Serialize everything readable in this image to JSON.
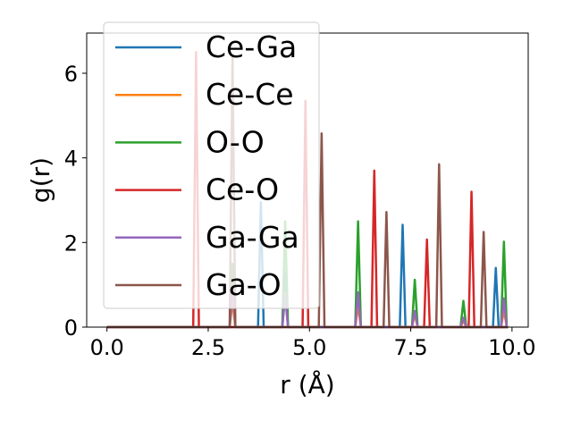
{
  "chart_data": {
    "type": "line",
    "title": "",
    "xlabel": "r (Å)",
    "ylabel": "g(r)",
    "xlim": [
      -0.5,
      10.4
    ],
    "ylim": [
      0,
      6.95
    ],
    "xticks": [
      0.0,
      2.5,
      5.0,
      7.5,
      10.0
    ],
    "xtick_labels": [
      "0.0",
      "2.5",
      "5.0",
      "7.5",
      "10.0"
    ],
    "yticks": [
      0,
      2,
      4,
      6
    ],
    "ytick_labels": [
      "0",
      "2",
      "4",
      "6"
    ],
    "grid": false,
    "legend_position": "top-left",
    "peak_halfwidth": 0.07,
    "series": [
      {
        "name": "Ce-Ga",
        "color": "#1f77b4",
        "peaks": [
          [
            3.8,
            2.95
          ],
          [
            4.4,
            1.3
          ],
          [
            7.3,
            2.42
          ],
          [
            9.6,
            1.4
          ]
        ]
      },
      {
        "name": "Ce-Ce",
        "color": "#ff7f0e",
        "peaks": [
          [
            3.1,
            0.6
          ],
          [
            4.4,
            0.8
          ],
          [
            6.2,
            0.5
          ],
          [
            7.6,
            0.3
          ],
          [
            8.8,
            0.15
          ],
          [
            9.8,
            0.4
          ]
        ]
      },
      {
        "name": "O-O",
        "color": "#2ca02c",
        "peaks": [
          [
            3.1,
            1.5
          ],
          [
            4.4,
            2.5
          ],
          [
            6.2,
            2.5
          ],
          [
            7.6,
            1.12
          ],
          [
            8.8,
            0.62
          ],
          [
            9.8,
            2.02
          ]
        ]
      },
      {
        "name": "Ce-O",
        "color": "#d62728",
        "peaks": [
          [
            2.2,
            6.5
          ],
          [
            4.9,
            5.35
          ],
          [
            6.6,
            3.7
          ],
          [
            7.9,
            2.07
          ],
          [
            9.0,
            3.2
          ]
        ]
      },
      {
        "name": "Ga-Ga",
        "color": "#9467bd",
        "peaks": [
          [
            3.1,
            1.0
          ],
          [
            4.4,
            0.75
          ],
          [
            6.2,
            0.82
          ],
          [
            7.6,
            0.38
          ],
          [
            8.8,
            0.22
          ],
          [
            9.8,
            0.68
          ]
        ]
      },
      {
        "name": "Ga-O",
        "color": "#8c564b",
        "peaks": [
          [
            3.1,
            6.4
          ],
          [
            5.3,
            4.58
          ],
          [
            6.9,
            2.72
          ],
          [
            8.2,
            3.85
          ],
          [
            9.3,
            2.25
          ]
        ]
      }
    ]
  }
}
